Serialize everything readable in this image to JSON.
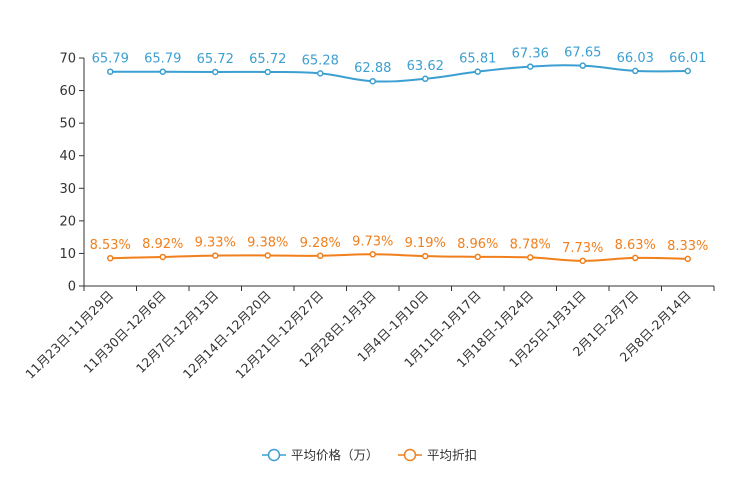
{
  "chart_data": {
    "type": "line",
    "categories": [
      "11月23日-11月29日",
      "11月30日-12月6日",
      "12月7日-12月13日",
      "12月14日-12月20日",
      "12月21日-12月27日",
      "12月28日-1月3日",
      "1月4日-1月10日",
      "1月11日-1月17日",
      "1月18日-1月24日",
      "1月25日-1月31日",
      "2月1日-2月7日",
      "2月8日-2月14日"
    ],
    "series": [
      {
        "name": "平均价格（万）",
        "color": "#3c9fd1",
        "values": [
          65.79,
          65.79,
          65.72,
          65.72,
          65.28,
          62.88,
          63.62,
          65.81,
          67.36,
          67.65,
          66.03,
          66.01
        ],
        "labels": [
          "65.79",
          "65.79",
          "65.72",
          "65.72",
          "65.28",
          "62.88",
          "63.62",
          "65.81",
          "67.36",
          "67.65",
          "66.03",
          "66.01"
        ]
      },
      {
        "name": "平均折扣",
        "color": "#f07f1c",
        "values": [
          8.53,
          8.92,
          9.33,
          9.38,
          9.28,
          9.73,
          9.19,
          8.96,
          8.78,
          7.73,
          8.63,
          8.33
        ],
        "labels": [
          "8.53%",
          "8.92%",
          "9.33%",
          "9.38%",
          "9.28%",
          "9.73%",
          "9.19%",
          "8.96%",
          "8.78%",
          "7.73%",
          "8.63%",
          "8.33%"
        ]
      }
    ],
    "yticks": [
      "0",
      "10",
      "20",
      "30",
      "40",
      "50",
      "60",
      "70"
    ],
    "ylim": [
      0,
      70
    ],
    "title": "",
    "xlabel": "",
    "ylabel": "",
    "grid": false,
    "legend_position": "bottom-center"
  }
}
